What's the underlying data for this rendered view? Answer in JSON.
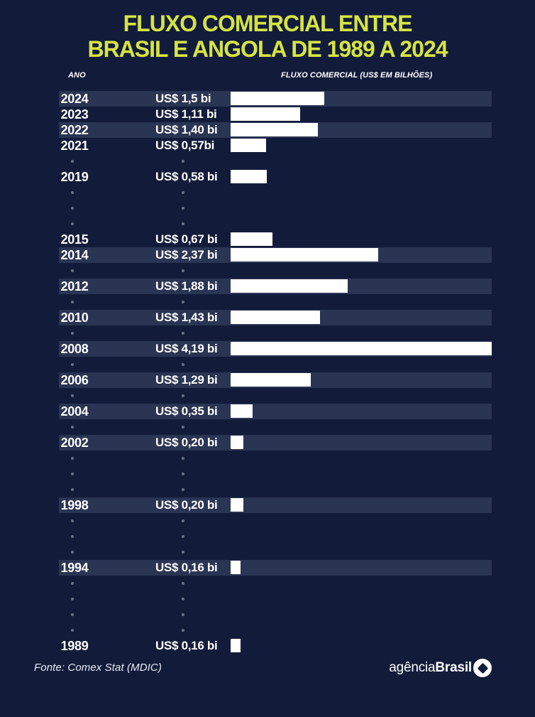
{
  "title": {
    "line1": "FLUXO COMERCIAL ENTRE",
    "line2": "BRASIL E ANGOLA DE 1989 A 2024"
  },
  "columns": {
    "year_header": "ANO",
    "flow_header": "FLUXO COMERCIAL (US$ EM BILHÕES)"
  },
  "footer": {
    "source": "Fonte: Comex Stat (MDIC)",
    "logo_light": "agência",
    "logo_bold": "Brasil"
  },
  "colors": {
    "background": "#121c3a",
    "row_stripe": "#2a3453",
    "bar": "#ffffff",
    "title_accent": "#d7e442",
    "text": "#ffffff"
  },
  "chart_data": {
    "type": "bar",
    "title": "FLUXO COMERCIAL ENTRE BRASIL E ANGOLA DE 1989 A 2024",
    "xlabel": "FLUXO COMERCIAL (US$ EM BILHÕES)",
    "ylabel": "ANO",
    "value_unit": "US$ bi",
    "max_value": 4.19,
    "legend": "none",
    "rows": [
      {
        "year": "2024",
        "label": "US$ 1,5 bi",
        "value": 1.5,
        "striped": true
      },
      {
        "year": "2023",
        "label": "US$ 1,11 bi",
        "value": 1.11,
        "striped": false
      },
      {
        "year": "2022",
        "label": "US$ 1,40 bi",
        "value": 1.4,
        "striped": true
      },
      {
        "year": "2021",
        "label": "US$ 0,57bi",
        "value": 0.57,
        "striped": false
      },
      {
        "dots": true
      },
      {
        "year": "2019",
        "label": "US$ 0,58 bi",
        "value": 0.58,
        "striped": false
      },
      {
        "dots": true
      },
      {
        "dots": true
      },
      {
        "dots": true
      },
      {
        "year": "2015",
        "label": "US$ 0,67 bi",
        "value": 0.67,
        "striped": false
      },
      {
        "year": "2014",
        "label": "US$ 2,37 bi",
        "value": 2.37,
        "striped": true
      },
      {
        "dots": true
      },
      {
        "year": "2012",
        "label": "US$ 1,88 bi",
        "value": 1.88,
        "striped": true
      },
      {
        "dots": true
      },
      {
        "year": "2010",
        "label": "US$ 1,43 bi",
        "value": 1.43,
        "striped": true
      },
      {
        "dots": true
      },
      {
        "year": "2008",
        "label": "US$ 4,19 bi",
        "value": 4.19,
        "striped": true
      },
      {
        "dots": true
      },
      {
        "year": "2006",
        "label": "US$ 1,29 bi",
        "value": 1.29,
        "striped": true
      },
      {
        "dots": true
      },
      {
        "year": "2004",
        "label": "US$ 0,35 bi",
        "value": 0.35,
        "striped": true
      },
      {
        "dots": true
      },
      {
        "year": "2002",
        "label": "US$ 0,20 bi",
        "value": 0.2,
        "striped": true
      },
      {
        "dots": true
      },
      {
        "dots": true
      },
      {
        "dots": true
      },
      {
        "year": "1998",
        "label": "US$ 0,20 bi",
        "value": 0.2,
        "striped": true
      },
      {
        "dots": true
      },
      {
        "dots": true
      },
      {
        "dots": true
      },
      {
        "year": "1994",
        "label": "US$ 0,16 bi",
        "value": 0.16,
        "striped": true
      },
      {
        "dots": true
      },
      {
        "dots": true
      },
      {
        "dots": true
      },
      {
        "dots": true
      },
      {
        "year": "1989",
        "label": "US$ 0,16 bi",
        "value": 0.16,
        "striped": false
      }
    ]
  }
}
